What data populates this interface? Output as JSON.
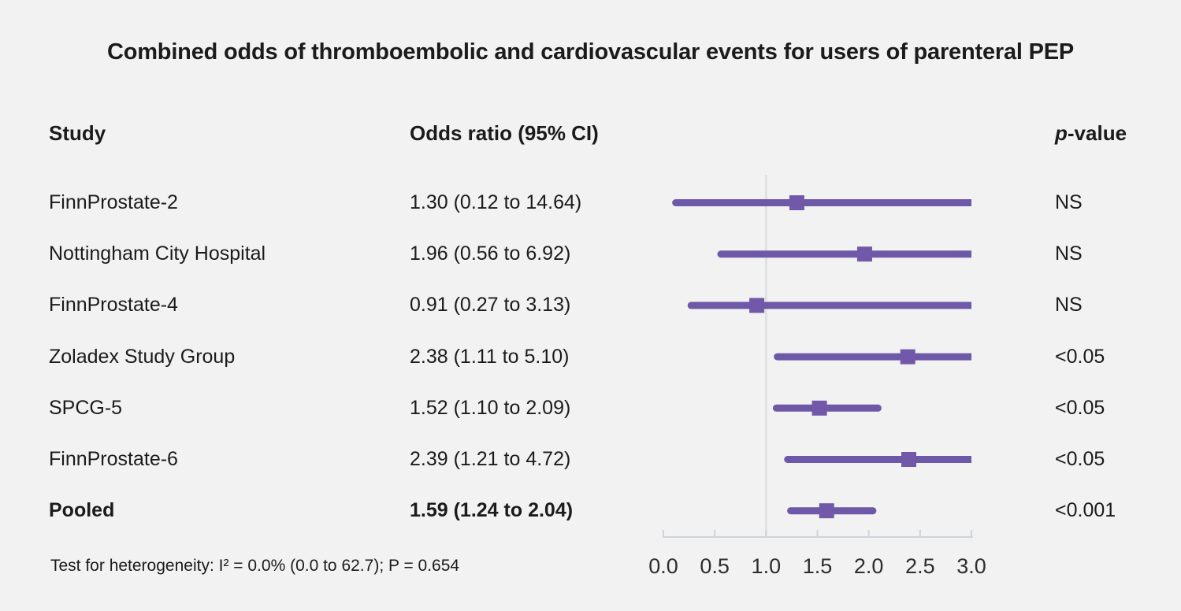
{
  "title": "Combined odds of thromboembolic and cardiovascular events for users of parenteral PEP",
  "columns": {
    "study": "Study",
    "odds_ratio": "Odds ratio (95% CI)",
    "p_italic": "p",
    "p_rest": "-value"
  },
  "rows": [
    {
      "study": "FinnProstate-2",
      "or_text": "1.30 (0.12 to 14.64)",
      "p": "NS",
      "bold": false
    },
    {
      "study": "Nottingham City Hospital",
      "or_text": "1.96 (0.56 to 6.92)",
      "p": "NS",
      "bold": false
    },
    {
      "study": "FinnProstate-4",
      "or_text": "0.91 (0.27 to 3.13)",
      "p": "NS",
      "bold": false
    },
    {
      "study": "Zoladex Study Group",
      "or_text": "2.38 (1.11 to 5.10)",
      "p": "<0.05",
      "bold": false
    },
    {
      "study": "SPCG-5",
      "or_text": "1.52 (1.10 to 2.09)",
      "p": "<0.05",
      "bold": false
    },
    {
      "study": "FinnProstate-6",
      "or_text": "2.39 (1.21 to 4.72)",
      "p": "<0.05",
      "bold": false
    },
    {
      "study": "Pooled",
      "or_text": "1.59 (1.24 to 2.04)",
      "p": "<0.001",
      "bold": true
    }
  ],
  "footer": "Test for heterogeneity: I² = 0.0% (0.0 to 62.7); P = 0.654",
  "chart_data": {
    "type": "scatter",
    "variant": "forest-plot",
    "title": "Combined odds of thromboembolic and cardiovascular events for users of parenteral PEP",
    "xlabel": "",
    "ylabel": "",
    "xlim": [
      0,
      3
    ],
    "tick_values": [
      0.0,
      0.5,
      1.0,
      1.5,
      2.0,
      2.5,
      3.0
    ],
    "tick_labels": [
      "0.0",
      "0.5",
      "1.0",
      "1.5",
      "2.0",
      "2.5",
      "3.0"
    ],
    "reference_x": 1.0,
    "grid": false,
    "legend": "none",
    "points": [
      {
        "label": "FinnProstate-2",
        "or": 1.3,
        "ci_low": 0.12,
        "ci_high": 14.64,
        "p": "NS",
        "pooled": false
      },
      {
        "label": "Nottingham City Hospital",
        "or": 1.96,
        "ci_low": 0.56,
        "ci_high": 6.92,
        "p": "NS",
        "pooled": false
      },
      {
        "label": "FinnProstate-4",
        "or": 0.91,
        "ci_low": 0.27,
        "ci_high": 3.13,
        "p": "NS",
        "pooled": false
      },
      {
        "label": "Zoladex Study Group",
        "or": 2.38,
        "ci_low": 1.11,
        "ci_high": 5.1,
        "p": "<0.05",
        "pooled": false
      },
      {
        "label": "SPCG-5",
        "or": 1.52,
        "ci_low": 1.1,
        "ci_high": 2.09,
        "p": "<0.05",
        "pooled": false
      },
      {
        "label": "FinnProstate-6",
        "or": 2.39,
        "ci_low": 1.21,
        "ci_high": 4.72,
        "p": "<0.05",
        "pooled": false
      },
      {
        "label": "Pooled",
        "or": 1.59,
        "ci_low": 1.24,
        "ci_high": 2.04,
        "p": "<0.001",
        "pooled": true
      }
    ]
  },
  "colors": {
    "background": "#f2f2f2",
    "ci_line": "#6d59a7",
    "marker": "#7158a9",
    "axis": "#cfd4da",
    "reference_line": "#dcdfe4",
    "text": "#1b1b1b",
    "tick_label_text": "#2d2d2d"
  }
}
